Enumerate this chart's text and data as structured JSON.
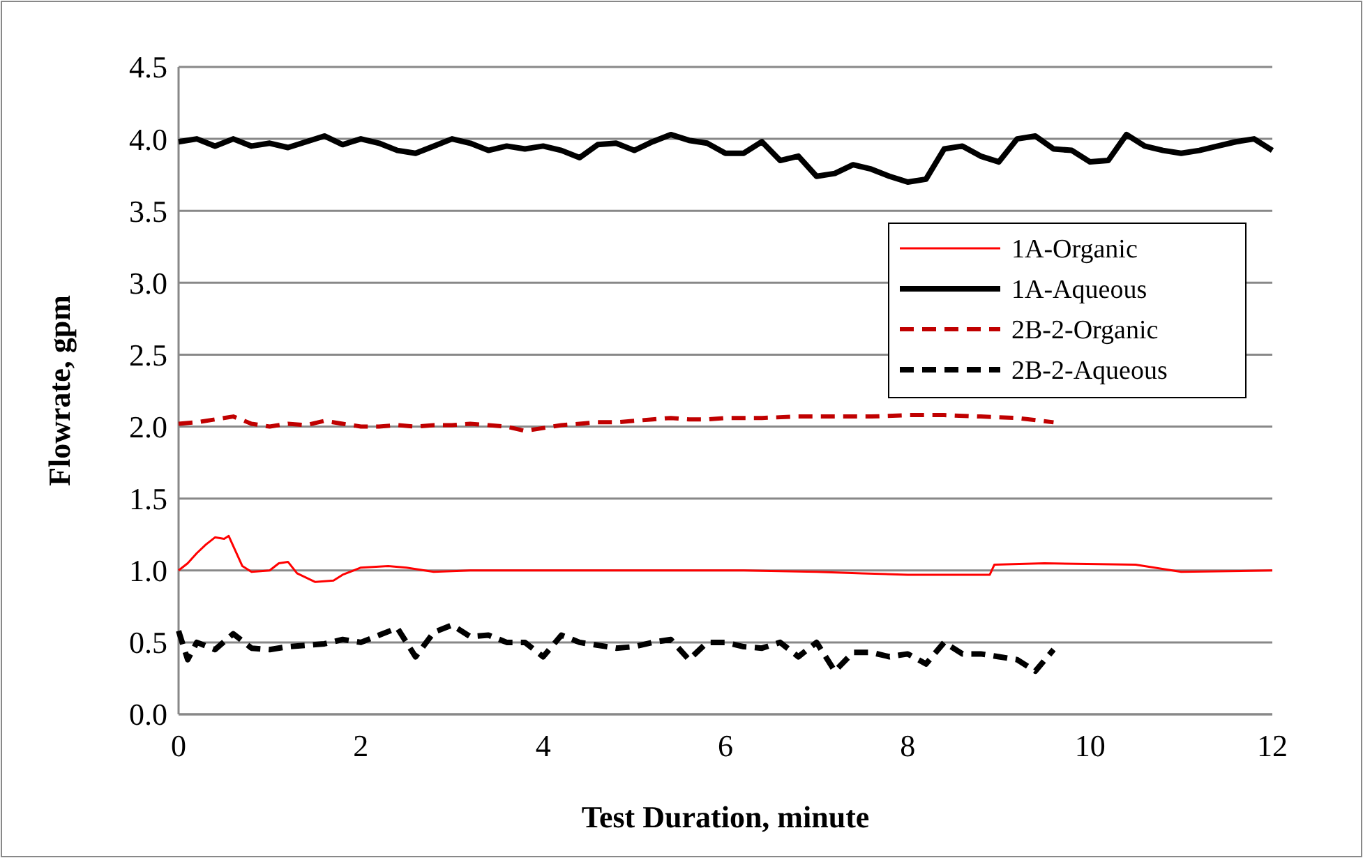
{
  "chart_data": {
    "type": "line",
    "xlabel": "Test Duration, minute",
    "ylabel": "Flowrate, gpm",
    "xlim": [
      0,
      12
    ],
    "xticks": [
      0,
      2,
      4,
      6,
      8,
      10,
      12
    ],
    "ylim": [
      0,
      4.5
    ],
    "yticks": [
      {
        "value": 0,
        "label": "0.0"
      },
      {
        "value": 0.5,
        "label": "0.5"
      },
      {
        "value": 1,
        "label": "1.0"
      },
      {
        "value": 1.5,
        "label": "1.5"
      },
      {
        "value": 2,
        "label": "2.0"
      },
      {
        "value": 2.5,
        "label": "2.5"
      },
      {
        "value": 3,
        "label": "3.0"
      },
      {
        "value": 3.5,
        "label": "3.5"
      },
      {
        "value": 4,
        "label": "4.0"
      },
      {
        "value": 4.5,
        "label": "4.5"
      }
    ],
    "grid": "y",
    "legend": "right",
    "series": [
      {
        "name": "1A-Organic",
        "color": "#ff0000",
        "line_style": "solid",
        "x": [
          0,
          0.1,
          0.2,
          0.3,
          0.4,
          0.5,
          0.55,
          0.7,
          0.8,
          1.0,
          1.1,
          1.2,
          1.3,
          1.5,
          1.7,
          1.8,
          2.0,
          2.3,
          2.5,
          2.8,
          3.2,
          4,
          5,
          5.5,
          6.2,
          7,
          7.5,
          8,
          8.9,
          8.95,
          9.5,
          10.5,
          11,
          12
        ],
        "values": [
          1.0,
          1.05,
          1.12,
          1.18,
          1.23,
          1.22,
          1.24,
          1.03,
          0.99,
          1.0,
          1.05,
          1.06,
          0.98,
          0.92,
          0.93,
          0.97,
          1.02,
          1.03,
          1.02,
          0.99,
          1.0,
          1.0,
          1.0,
          1.0,
          1.0,
          0.99,
          0.98,
          0.97,
          0.97,
          1.04,
          1.05,
          1.04,
          0.99,
          1.0
        ]
      },
      {
        "name": "1A-Aqueous",
        "color": "#000000",
        "line_style": "solid",
        "x": [
          0,
          0.2,
          0.4,
          0.6,
          0.8,
          1.0,
          1.2,
          1.4,
          1.6,
          1.8,
          2.0,
          2.2,
          2.4,
          2.6,
          2.8,
          3.0,
          3.2,
          3.4,
          3.6,
          3.8,
          4.0,
          4.2,
          4.4,
          4.6,
          4.8,
          5.0,
          5.2,
          5.4,
          5.6,
          5.8,
          6.0,
          6.2,
          6.4,
          6.6,
          6.8,
          7.0,
          7.2,
          7.4,
          7.6,
          7.8,
          8.0,
          8.2,
          8.4,
          8.6,
          8.8,
          9.0,
          9.2,
          9.4,
          9.6,
          9.8,
          10.0,
          10.2,
          10.4,
          10.6,
          10.8,
          11.0,
          11.2,
          11.4,
          11.6,
          11.8,
          12.0
        ],
        "values": [
          3.98,
          4.0,
          3.95,
          4.0,
          3.95,
          3.97,
          3.94,
          3.98,
          4.02,
          3.96,
          4.0,
          3.97,
          3.92,
          3.9,
          3.95,
          4.0,
          3.97,
          3.92,
          3.95,
          3.93,
          3.95,
          3.92,
          3.87,
          3.96,
          3.97,
          3.92,
          3.98,
          4.03,
          3.99,
          3.97,
          3.9,
          3.9,
          3.98,
          3.85,
          3.88,
          3.74,
          3.76,
          3.82,
          3.79,
          3.74,
          3.7,
          3.72,
          3.93,
          3.95,
          3.88,
          3.84,
          4.0,
          4.02,
          3.93,
          3.92,
          3.84,
          3.85,
          4.03,
          3.95,
          3.92,
          3.9,
          3.92,
          3.95,
          3.98,
          4.0,
          3.92
        ]
      },
      {
        "name": "2B-2-Organic",
        "color": "#c00000",
        "line_style": "dashed",
        "x": [
          0,
          0.2,
          0.4,
          0.6,
          0.8,
          1.0,
          1.2,
          1.4,
          1.6,
          1.8,
          2.0,
          2.2,
          2.4,
          2.6,
          2.8,
          3.0,
          3.2,
          3.4,
          3.6,
          3.8,
          4.0,
          4.2,
          4.4,
          4.6,
          4.8,
          5.0,
          5.2,
          5.4,
          5.6,
          5.8,
          6.0,
          6.4,
          6.8,
          7.2,
          7.6,
          8.0,
          8.4,
          8.8,
          9.2,
          9.6
        ],
        "values": [
          2.02,
          2.03,
          2.05,
          2.07,
          2.02,
          2.0,
          2.02,
          2.01,
          2.04,
          2.02,
          2.0,
          2.0,
          2.01,
          2.0,
          2.01,
          2.01,
          2.02,
          2.01,
          2.0,
          1.97,
          1.99,
          2.01,
          2.02,
          2.03,
          2.03,
          2.04,
          2.05,
          2.06,
          2.05,
          2.05,
          2.06,
          2.06,
          2.07,
          2.07,
          2.07,
          2.08,
          2.08,
          2.07,
          2.06,
          2.03
        ]
      },
      {
        "name": "2B-2-Aqueous",
        "color": "#000000",
        "line_style": "dashed",
        "x": [
          0,
          0.1,
          0.2,
          0.4,
          0.6,
          0.8,
          1.0,
          1.2,
          1.4,
          1.6,
          1.8,
          2.0,
          2.2,
          2.4,
          2.6,
          2.8,
          3.0,
          3.2,
          3.4,
          3.6,
          3.8,
          4.0,
          4.2,
          4.4,
          4.6,
          4.8,
          5.0,
          5.2,
          5.4,
          5.6,
          5.8,
          6.0,
          6.2,
          6.4,
          6.6,
          6.8,
          7.0,
          7.2,
          7.4,
          7.6,
          7.8,
          8.0,
          8.2,
          8.4,
          8.6,
          8.8,
          9.0,
          9.2,
          9.4,
          9.6
        ],
        "values": [
          0.58,
          0.38,
          0.5,
          0.45,
          0.56,
          0.46,
          0.45,
          0.47,
          0.48,
          0.49,
          0.52,
          0.5,
          0.55,
          0.6,
          0.4,
          0.57,
          0.62,
          0.54,
          0.55,
          0.5,
          0.5,
          0.4,
          0.55,
          0.5,
          0.48,
          0.46,
          0.47,
          0.5,
          0.52,
          0.38,
          0.5,
          0.5,
          0.47,
          0.46,
          0.5,
          0.4,
          0.5,
          0.3,
          0.43,
          0.43,
          0.4,
          0.42,
          0.35,
          0.5,
          0.42,
          0.42,
          0.4,
          0.38,
          0.3,
          0.45
        ]
      }
    ]
  }
}
